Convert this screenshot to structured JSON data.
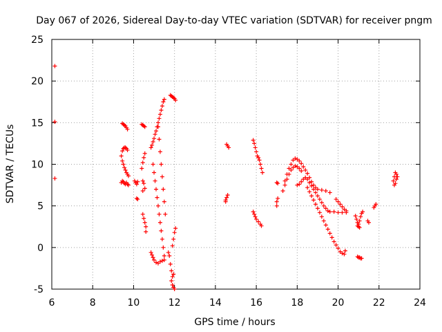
{
  "chart_data": {
    "type": "scatter",
    "title": "Day 067 of 2026, Sidereal Day-to-day VTEC variation (SDTVAR) for receiver pngm",
    "xlabel": "GPS time / hours",
    "ylabel": "SDTVAR / TECUs",
    "xlim": [
      6,
      24
    ],
    "ylim": [
      -5,
      25
    ],
    "xticks": [
      6,
      8,
      10,
      12,
      14,
      16,
      18,
      20,
      22,
      24
    ],
    "yticks": [
      -5,
      0,
      5,
      10,
      15,
      20,
      25
    ],
    "grid": true,
    "marker": "+",
    "color": "#ff0000",
    "series": [
      {
        "name": "isolated_early",
        "points": [
          [
            6.15,
            21.8
          ],
          [
            6.15,
            15.1
          ],
          [
            6.15,
            8.3
          ]
        ]
      },
      {
        "name": "arc_9.5_upper",
        "points": [
          [
            9.45,
            14.9
          ],
          [
            9.5,
            14.8
          ],
          [
            9.55,
            14.7
          ],
          [
            9.6,
            14.6
          ],
          [
            9.65,
            14.4
          ],
          [
            9.7,
            14.2
          ]
        ]
      },
      {
        "name": "arc_9.5_loop",
        "points": [
          [
            9.4,
            11.0
          ],
          [
            9.45,
            11.6
          ],
          [
            9.5,
            11.9
          ],
          [
            9.55,
            12.0
          ],
          [
            9.6,
            12.0
          ],
          [
            9.65,
            11.9
          ],
          [
            9.7,
            11.7
          ],
          [
            9.45,
            10.4
          ],
          [
            9.5,
            10.0
          ],
          [
            9.55,
            9.6
          ],
          [
            9.6,
            9.3
          ],
          [
            9.65,
            9.0
          ],
          [
            9.7,
            8.8
          ],
          [
            9.75,
            8.6
          ]
        ]
      },
      {
        "name": "arc_9.5_lower",
        "points": [
          [
            9.4,
            7.8
          ],
          [
            9.45,
            8.0
          ],
          [
            9.5,
            7.9
          ],
          [
            9.55,
            7.7
          ],
          [
            9.6,
            7.6
          ],
          [
            9.65,
            7.8
          ],
          [
            9.7,
            7.6
          ],
          [
            9.75,
            7.5
          ]
        ]
      },
      {
        "name": "arc_10.1",
        "points": [
          [
            10.05,
            8.0
          ],
          [
            10.1,
            7.8
          ],
          [
            10.15,
            7.6
          ],
          [
            10.2,
            7.9
          ],
          [
            10.15,
            5.9
          ],
          [
            10.2,
            5.8
          ]
        ]
      },
      {
        "name": "arc_10.4_upper",
        "points": [
          [
            10.4,
            14.8
          ],
          [
            10.45,
            14.7
          ],
          [
            10.5,
            14.6
          ],
          [
            10.55,
            14.5
          ]
        ]
      },
      {
        "name": "arc_10.5_mid",
        "points": [
          [
            10.4,
            9.5
          ],
          [
            10.45,
            10.2
          ],
          [
            10.5,
            10.8
          ],
          [
            10.55,
            11.3
          ],
          [
            10.45,
            8.0
          ],
          [
            10.5,
            7.7
          ],
          [
            10.55,
            7.1
          ],
          [
            10.45,
            6.8
          ]
        ]
      },
      {
        "name": "arc_10.5_low",
        "points": [
          [
            10.45,
            4.0
          ],
          [
            10.5,
            3.5
          ],
          [
            10.55,
            3.0
          ],
          [
            10.6,
            2.5
          ],
          [
            10.6,
            1.9
          ]
        ]
      },
      {
        "name": "arc_10.9_rise",
        "points": [
          [
            10.85,
            12.0
          ],
          [
            10.9,
            12.3
          ],
          [
            10.95,
            12.7
          ],
          [
            11.0,
            13.1
          ],
          [
            11.05,
            13.6
          ],
          [
            11.1,
            14.0
          ],
          [
            11.15,
            14.5
          ],
          [
            11.2,
            15.0
          ],
          [
            11.25,
            15.5
          ],
          [
            11.3,
            16.0
          ],
          [
            11.35,
            16.5
          ],
          [
            11.4,
            17.0
          ],
          [
            11.45,
            17.5
          ],
          [
            11.5,
            17.8
          ]
        ]
      },
      {
        "name": "arc_10.9_fall",
        "points": [
          [
            10.95,
            10.0
          ],
          [
            11.0,
            9.0
          ],
          [
            11.05,
            8.0
          ],
          [
            11.1,
            7.0
          ],
          [
            11.15,
            6.0
          ],
          [
            11.2,
            5.0
          ],
          [
            11.25,
            4.0
          ],
          [
            11.3,
            3.0
          ],
          [
            11.35,
            2.0
          ],
          [
            11.4,
            1.0
          ],
          [
            11.45,
            0.0
          ],
          [
            11.5,
            -1.0
          ]
        ]
      },
      {
        "name": "arc_11.3_fall",
        "points": [
          [
            11.2,
            14.5
          ],
          [
            11.25,
            13.0
          ],
          [
            11.3,
            11.5
          ],
          [
            11.35,
            10.0
          ],
          [
            11.4,
            8.5
          ],
          [
            11.45,
            7.0
          ],
          [
            11.5,
            5.5
          ],
          [
            11.55,
            4.0
          ]
        ]
      },
      {
        "name": "arc_10.8_bottom",
        "points": [
          [
            10.85,
            -0.6
          ],
          [
            10.9,
            -0.9
          ],
          [
            10.95,
            -1.2
          ],
          [
            11.0,
            -1.5
          ],
          [
            11.1,
            -1.8
          ],
          [
            11.2,
            -1.9
          ],
          [
            11.3,
            -1.7
          ],
          [
            11.4,
            -1.6
          ],
          [
            11.5,
            -1.5
          ]
        ]
      },
      {
        "name": "arc_11.9_top",
        "points": [
          [
            11.8,
            18.3
          ],
          [
            11.85,
            18.2
          ],
          [
            11.9,
            18.1
          ],
          [
            11.95,
            18.0
          ],
          [
            12.0,
            17.9
          ],
          [
            12.05,
            17.7
          ]
        ]
      },
      {
        "name": "arc_11.9_bottom",
        "points": [
          [
            11.7,
            -0.6
          ],
          [
            11.75,
            -1.0
          ],
          [
            11.8,
            -2.0
          ],
          [
            11.85,
            -2.8
          ],
          [
            11.9,
            -3.5
          ],
          [
            11.95,
            -3.2
          ],
          [
            11.85,
            -4.0
          ],
          [
            11.9,
            -4.5
          ],
          [
            11.95,
            -4.8
          ],
          [
            12.0,
            -5.0
          ],
          [
            11.9,
            0.2
          ],
          [
            11.95,
            1.0
          ],
          [
            12.0,
            1.8
          ],
          [
            12.05,
            2.3
          ]
        ]
      },
      {
        "name": "arc_14.5",
        "points": [
          [
            14.55,
            12.4
          ],
          [
            14.6,
            12.2
          ],
          [
            14.65,
            12.0
          ],
          [
            14.6,
            6.3
          ],
          [
            14.55,
            6.0
          ],
          [
            14.5,
            5.7
          ],
          [
            14.5,
            5.5
          ]
        ]
      },
      {
        "name": "arc_15.9_upper",
        "points": [
          [
            15.85,
            12.9
          ],
          [
            15.9,
            12.5
          ],
          [
            15.95,
            12.0
          ],
          [
            16.0,
            11.5
          ],
          [
            16.05,
            11.0
          ],
          [
            16.1,
            10.8
          ],
          [
            16.15,
            10.5
          ],
          [
            16.2,
            10.0
          ],
          [
            16.25,
            9.5
          ],
          [
            16.3,
            9.0
          ]
        ]
      },
      {
        "name": "arc_15.9_lower",
        "points": [
          [
            15.85,
            4.3
          ],
          [
            15.9,
            4.0
          ],
          [
            15.95,
            3.7
          ],
          [
            16.0,
            3.4
          ],
          [
            16.1,
            3.1
          ],
          [
            16.2,
            2.8
          ],
          [
            16.25,
            2.6
          ]
        ]
      },
      {
        "name": "arc_17.0",
        "points": [
          [
            17.0,
            7.8
          ],
          [
            17.05,
            7.7
          ],
          [
            17.0,
            5.5
          ],
          [
            17.05,
            5.9
          ],
          [
            17.0,
            5.0
          ]
        ]
      },
      {
        "name": "arc_17.5_cluster",
        "points": [
          [
            17.3,
            6.8
          ],
          [
            17.4,
            7.5
          ],
          [
            17.5,
            8.2
          ],
          [
            17.6,
            8.8
          ],
          [
            17.7,
            9.3
          ],
          [
            17.8,
            9.6
          ],
          [
            17.9,
            9.8
          ],
          [
            18.0,
            9.7
          ],
          [
            18.1,
            9.5
          ],
          [
            18.2,
            9.2
          ],
          [
            17.4,
            8.0
          ],
          [
            17.5,
            8.8
          ],
          [
            17.6,
            9.5
          ],
          [
            17.7,
            10.0
          ],
          [
            17.8,
            10.5
          ],
          [
            17.9,
            10.7
          ],
          [
            18.0,
            10.6
          ],
          [
            18.1,
            10.4
          ],
          [
            18.2,
            10.1
          ],
          [
            18.3,
            9.7
          ],
          [
            18.4,
            9.3
          ],
          [
            18.5,
            8.9
          ],
          [
            18.6,
            8.4
          ],
          [
            18.7,
            7.9
          ],
          [
            18.8,
            7.5
          ],
          [
            18.9,
            7.2
          ],
          [
            19.0,
            7.0
          ],
          [
            19.2,
            6.9
          ],
          [
            19.4,
            6.8
          ],
          [
            19.6,
            6.6
          ]
        ]
      },
      {
        "name": "arc_18.0_descent_a",
        "points": [
          [
            18.0,
            7.5
          ],
          [
            18.1,
            7.6
          ],
          [
            18.2,
            7.9
          ],
          [
            18.3,
            8.2
          ],
          [
            18.4,
            8.4
          ],
          [
            18.5,
            8.2
          ],
          [
            18.6,
            7.8
          ],
          [
            18.7,
            7.4
          ],
          [
            18.8,
            7.0
          ],
          [
            18.9,
            6.6
          ],
          [
            19.0,
            6.2
          ],
          [
            19.1,
            5.8
          ],
          [
            19.2,
            5.4
          ],
          [
            19.3,
            5.0
          ],
          [
            19.4,
            4.7
          ],
          [
            19.5,
            4.4
          ],
          [
            19.6,
            4.3
          ],
          [
            19.8,
            4.3
          ],
          [
            20.0,
            4.2
          ],
          [
            20.2,
            4.2
          ],
          [
            20.4,
            4.2
          ]
        ]
      },
      {
        "name": "arc_18.0_descent_b",
        "points": [
          [
            18.5,
            7.2
          ],
          [
            18.6,
            6.7
          ],
          [
            18.7,
            6.2
          ],
          [
            18.8,
            5.7
          ],
          [
            18.9,
            5.2
          ],
          [
            19.0,
            4.7
          ],
          [
            19.1,
            4.2
          ],
          [
            19.2,
            3.7
          ],
          [
            19.3,
            3.2
          ],
          [
            19.4,
            2.7
          ],
          [
            19.5,
            2.2
          ],
          [
            19.6,
            1.7
          ],
          [
            19.7,
            1.2
          ],
          [
            19.8,
            0.7
          ],
          [
            19.9,
            0.3
          ],
          [
            20.0,
            -0.1
          ],
          [
            20.1,
            -0.5
          ],
          [
            20.2,
            -0.7
          ],
          [
            20.3,
            -0.8
          ],
          [
            20.35,
            -0.4
          ]
        ]
      },
      {
        "name": "arc_20.1",
        "points": [
          [
            19.9,
            5.8
          ],
          [
            20.0,
            5.5
          ],
          [
            20.1,
            5.2
          ],
          [
            20.2,
            4.9
          ],
          [
            20.3,
            4.6
          ],
          [
            20.4,
            4.4
          ]
        ]
      },
      {
        "name": "arc_20.9",
        "points": [
          [
            20.85,
            3.8
          ],
          [
            20.9,
            3.4
          ],
          [
            20.95,
            3.0
          ],
          [
            21.0,
            2.8
          ],
          [
            21.05,
            3.2
          ],
          [
            21.1,
            3.7
          ],
          [
            21.15,
            4.1
          ],
          [
            21.2,
            4.3
          ],
          [
            20.95,
            2.6
          ],
          [
            21.0,
            2.5
          ],
          [
            21.05,
            2.4
          ],
          [
            21.45,
            3.2
          ],
          [
            21.5,
            3.0
          ]
        ]
      },
      {
        "name": "arc_21.0_low",
        "points": [
          [
            20.95,
            -1.1
          ],
          [
            21.0,
            -1.2
          ],
          [
            21.05,
            -1.2
          ],
          [
            21.1,
            -1.3
          ],
          [
            21.15,
            -1.3
          ]
        ]
      },
      {
        "name": "arc_21.8",
        "points": [
          [
            21.75,
            4.8
          ],
          [
            21.8,
            5.0
          ],
          [
            21.85,
            5.2
          ]
        ]
      },
      {
        "name": "arc_22.8",
        "points": [
          [
            22.7,
            8.0
          ],
          [
            22.75,
            8.5
          ],
          [
            22.8,
            9.0
          ],
          [
            22.85,
            8.8
          ],
          [
            22.9,
            8.5
          ],
          [
            22.8,
            7.7
          ],
          [
            22.85,
            8.2
          ],
          [
            22.75,
            7.5
          ]
        ]
      }
    ]
  }
}
